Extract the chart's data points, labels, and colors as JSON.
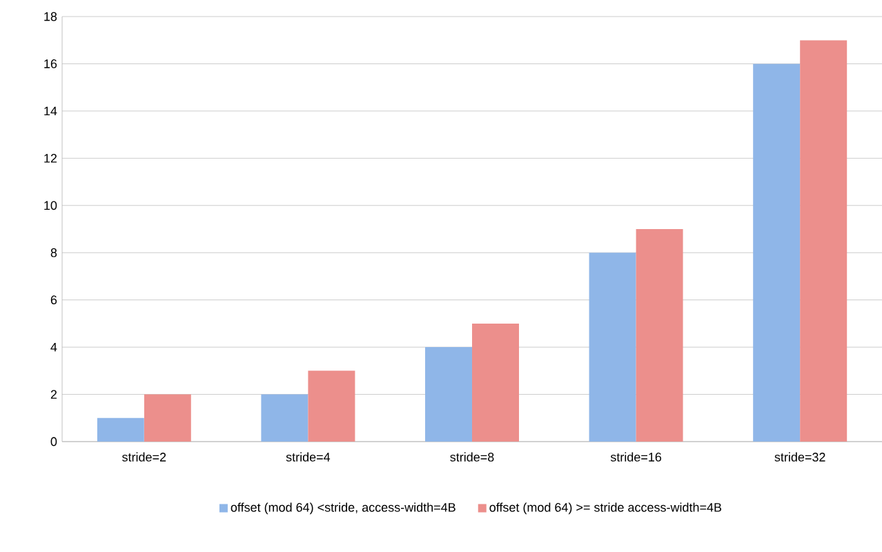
{
  "chart_data": {
    "type": "bar",
    "categories": [
      "stride=2",
      "stride=4",
      "stride=8",
      "stride=16",
      "stride=32"
    ],
    "series": [
      {
        "name": "offset (mod 64) <stride, access-width=4B",
        "color": "#8fb6e8",
        "values": [
          1,
          2,
          4,
          8,
          16
        ]
      },
      {
        "name": "offset (mod 64) >= stride access-width=4B",
        "color": "#ec8f8c",
        "values": [
          2,
          3,
          5,
          9,
          17
        ]
      }
    ],
    "ylim": [
      0,
      18
    ],
    "yticks": [
      0,
      2,
      4,
      6,
      8,
      10,
      12,
      14,
      16,
      18
    ],
    "grid": "y",
    "legend": "bottom"
  }
}
